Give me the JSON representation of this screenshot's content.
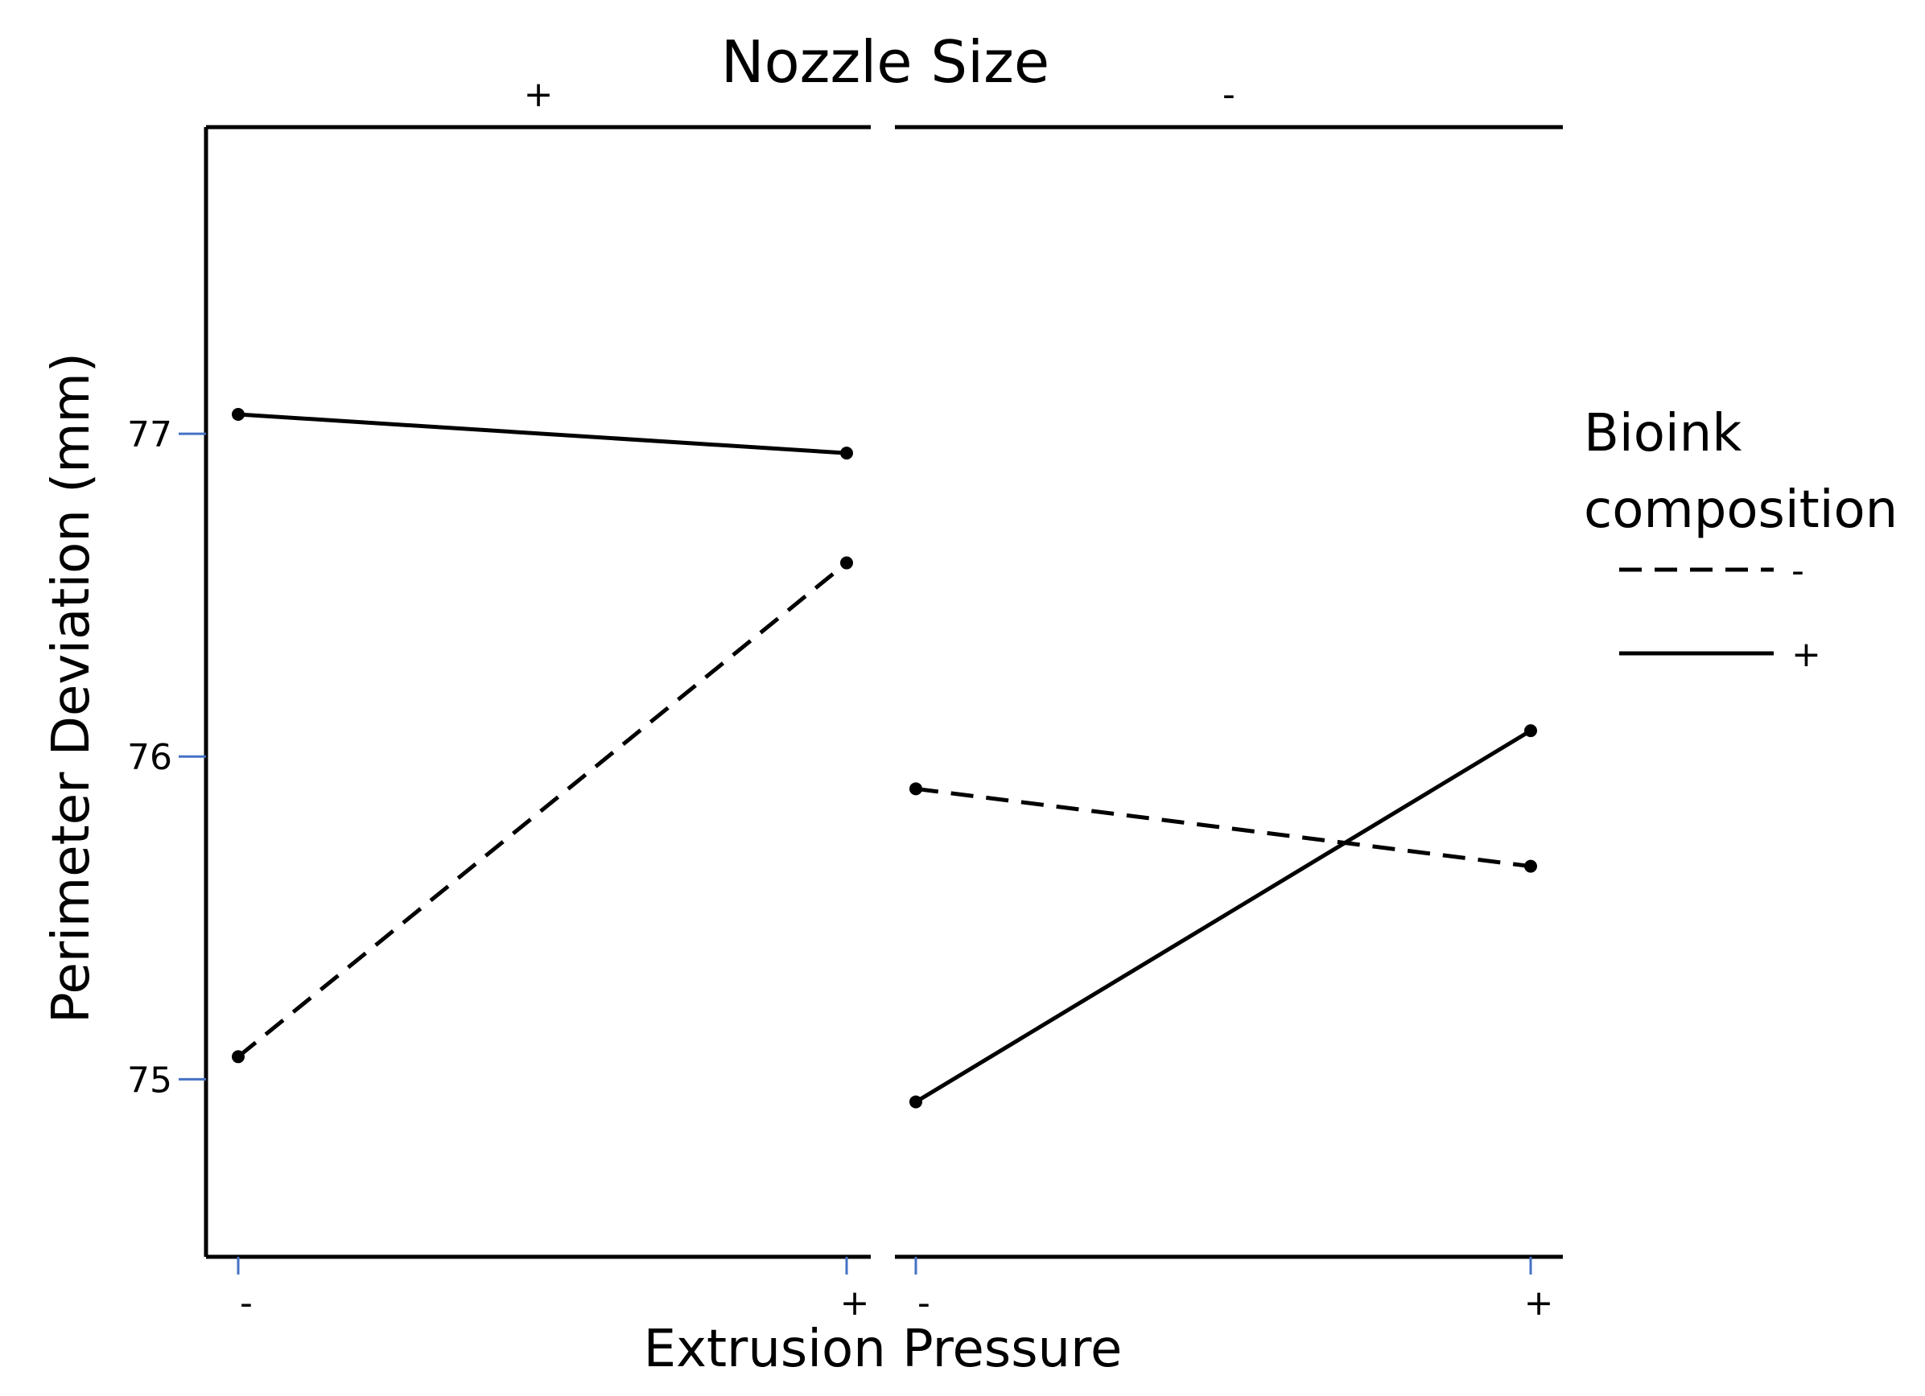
{
  "chart_data": {
    "type": "line",
    "title": "Nozzle Size",
    "xlabel": "Extrusion Pressure",
    "ylabel": "Perimeter Deviation (mm)",
    "ylim": [
      74.45,
      77.95
    ],
    "yticks": [
      75,
      76,
      77
    ],
    "grid": false,
    "panels": [
      {
        "label": "+",
        "categories": [
          "-",
          "+"
        ]
      },
      {
        "label": "-",
        "categories": [
          "-",
          "+"
        ]
      }
    ],
    "legend": {
      "title": "Bioink composition",
      "title_lines": [
        "Bioink",
        "composition"
      ],
      "placement": "right",
      "entries": [
        {
          "label": "-",
          "style": "dashed"
        },
        {
          "label": "+",
          "style": "solid"
        }
      ]
    },
    "series": [
      {
        "legend_label": "-",
        "style": "dashed",
        "panel_values": [
          [
            75.07,
            76.6
          ],
          [
            75.9,
            75.66
          ]
        ]
      },
      {
        "legend_label": "+",
        "style": "solid",
        "panel_values": [
          [
            77.06,
            76.94
          ],
          [
            74.93,
            76.08
          ]
        ]
      }
    ],
    "colors": {
      "line": "#000000",
      "tick_mark": "#4472c4"
    }
  }
}
